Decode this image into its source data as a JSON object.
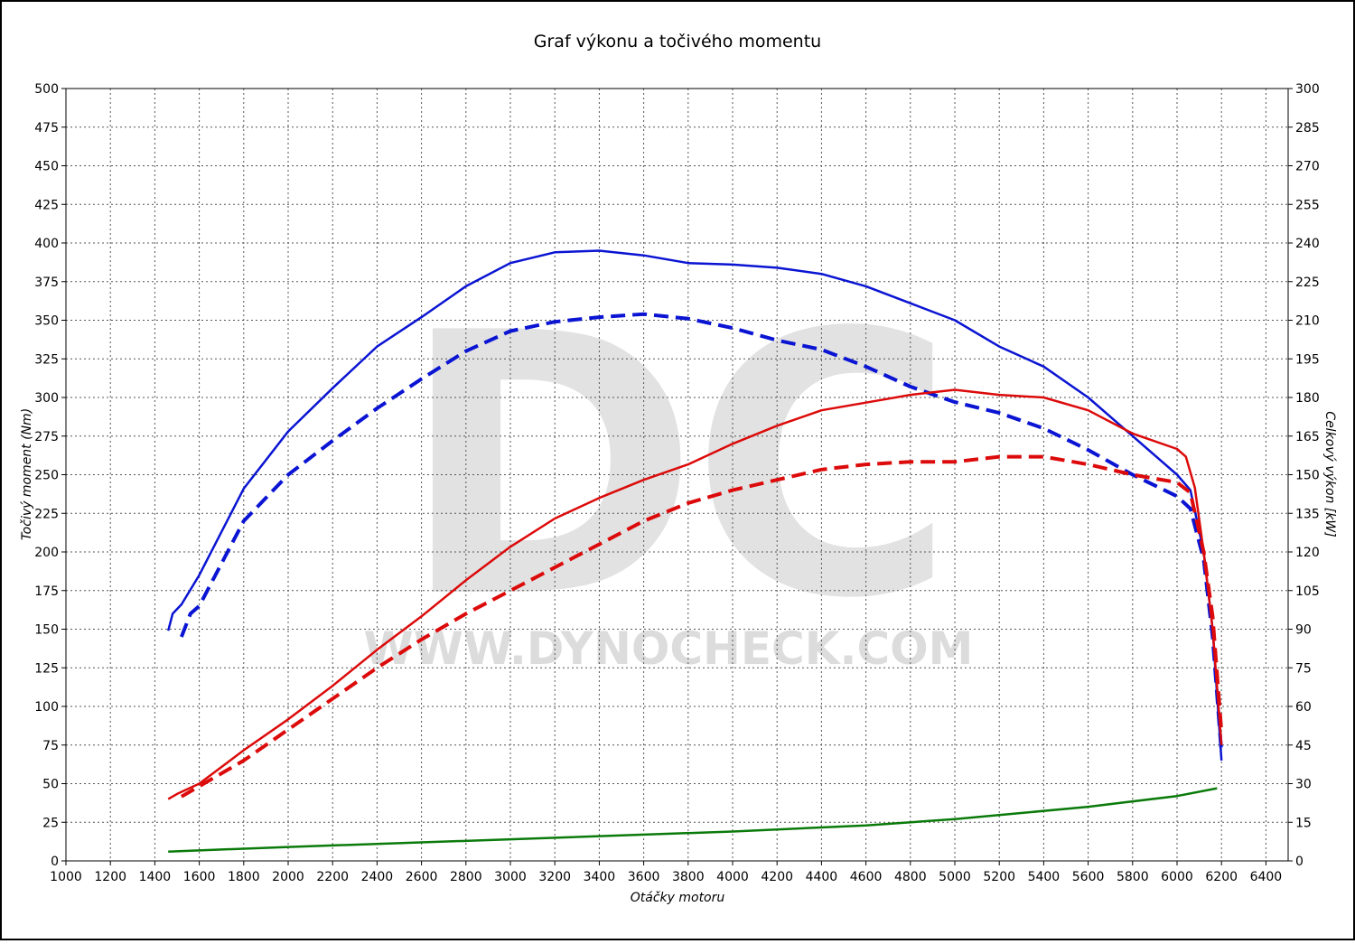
{
  "chart_data": {
    "type": "line",
    "title": "Graf výkonu a točivého momentu",
    "xlabel": "Otáčky motoru",
    "ylabel": "Točivý moment (Nm)",
    "y2label": "Celkový výkon [kW]",
    "watermark": {
      "logo": "DC",
      "url": "WWW.DYNOCHECK.COM"
    },
    "xlim": [
      1000,
      6500
    ],
    "xticks": [
      1000,
      1200,
      1400,
      1600,
      1800,
      2000,
      2200,
      2400,
      2600,
      2800,
      3000,
      3200,
      3400,
      3600,
      3800,
      4000,
      4200,
      4400,
      4600,
      4800,
      5000,
      5200,
      5400,
      5600,
      5800,
      6000,
      6200,
      6400
    ],
    "ylim": [
      0,
      500
    ],
    "yticks": [
      0,
      25,
      50,
      75,
      100,
      125,
      150,
      175,
      200,
      225,
      250,
      275,
      300,
      325,
      350,
      375,
      400,
      425,
      450,
      475,
      500
    ],
    "y2lim": [
      0,
      300
    ],
    "y2ticks": [
      0,
      15,
      30,
      45,
      60,
      75,
      90,
      105,
      120,
      135,
      150,
      165,
      180,
      195,
      210,
      225,
      240,
      255,
      270,
      285,
      300
    ],
    "grid": true,
    "series": [
      {
        "color": "#0a14d2",
        "dashed": false,
        "axis": "y",
        "x": [
          1460,
          1480,
          1520,
          1600,
          1800,
          2000,
          2200,
          2400,
          2600,
          2800,
          3000,
          3200,
          3400,
          3600,
          3800,
          4000,
          4200,
          4400,
          4600,
          4800,
          5000,
          5200,
          5400,
          5600,
          5800,
          6000,
          6060,
          6120,
          6160,
          6200
        ],
        "values": [
          149,
          160,
          166,
          185,
          241,
          278,
          306,
          333,
          352,
          372,
          387,
          394,
          395,
          392,
          387,
          386,
          384,
          380,
          372,
          361,
          350,
          333,
          320,
          300,
          275,
          250,
          240,
          200,
          150,
          65
        ]
      },
      {
        "color": "#0a14d2",
        "dashed": true,
        "axis": "y",
        "x": [
          1520,
          1560,
          1600,
          1800,
          2000,
          2200,
          2400,
          2600,
          2800,
          3000,
          3200,
          3400,
          3600,
          3800,
          4000,
          4200,
          4400,
          4600,
          4800,
          5000,
          5200,
          5400,
          5600,
          5800,
          6000,
          6060,
          6120,
          6160,
          6200
        ],
        "values": [
          145,
          160,
          165,
          220,
          250,
          272,
          293,
          312,
          330,
          343,
          349,
          352,
          354,
          351,
          345,
          337,
          331,
          320,
          307,
          297,
          290,
          280,
          266,
          250,
          236,
          228,
          195,
          145,
          70
        ]
      },
      {
        "color": "#dc0a0a",
        "dashed": false,
        "axis": "y2",
        "x": [
          1460,
          1500,
          1600,
          1800,
          2000,
          2200,
          2400,
          2600,
          2800,
          3000,
          3200,
          3400,
          3600,
          3800,
          4000,
          4200,
          4400,
          4600,
          4800,
          5000,
          5200,
          5400,
          5600,
          5800,
          6000,
          6040,
          6080,
          6120,
          6160,
          6200
        ],
        "values": [
          24,
          26,
          30,
          43,
          55,
          68,
          82,
          95,
          109,
          122,
          133,
          141,
          148,
          154,
          162,
          169,
          175,
          178,
          181,
          183,
          181,
          180,
          175,
          166,
          160,
          157,
          145,
          120,
          90,
          45
        ]
      },
      {
        "color": "#dc0a0a",
        "dashed": true,
        "axis": "y2",
        "x": [
          1520,
          1600,
          1800,
          2000,
          2200,
          2400,
          2600,
          2800,
          3000,
          3200,
          3400,
          3600,
          3800,
          4000,
          4200,
          4400,
          4600,
          4800,
          5000,
          5200,
          5400,
          5600,
          5800,
          6000,
          6060,
          6120,
          6160,
          6200
        ],
        "values": [
          25,
          29,
          39,
          51,
          63,
          75,
          86,
          96,
          105,
          114,
          123,
          132,
          139,
          144,
          148,
          152,
          154,
          155,
          155,
          157,
          157,
          154,
          150,
          147,
          143,
          120,
          95,
          50
        ]
      },
      {
        "color": "#0a7a0a",
        "dashed": false,
        "axis": "y",
        "x": [
          1460,
          2000,
          3000,
          4000,
          4600,
          5000,
          5600,
          6000,
          6180
        ],
        "values": [
          6,
          9,
          14,
          19,
          23,
          27,
          35,
          42,
          47
        ]
      }
    ]
  }
}
